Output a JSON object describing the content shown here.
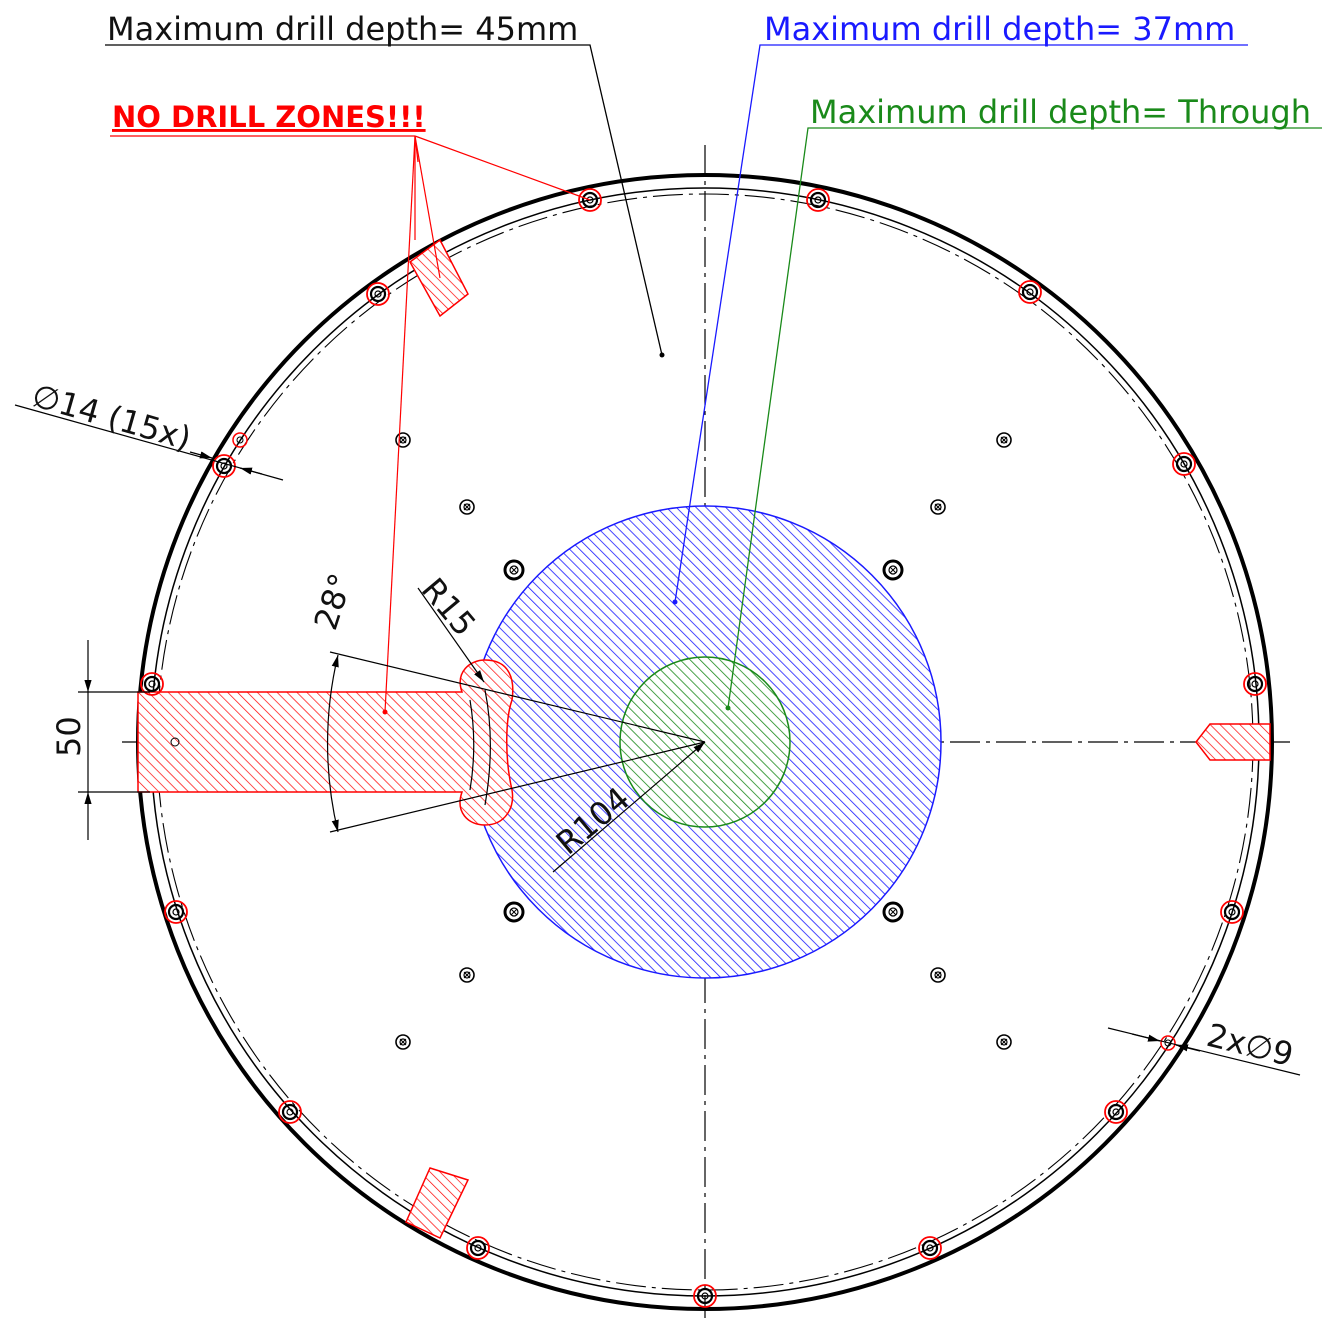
{
  "labels": {
    "depth_45": "Maximum drill depth= 45mm",
    "depth_37": "Maximum drill depth= 37mm",
    "depth_through": "Maximum drill depth= Through",
    "no_drill": "NO DRILL ZONES!!!"
  },
  "dimensions": {
    "hole_dia_14": "∅14 (15x)",
    "hole_dia_9": "2x∅9",
    "angle": "28°",
    "radius_small": "R15",
    "radius_large": "R104",
    "slot_width": "50"
  },
  "colors": {
    "outline": "#000000",
    "no_drill": "#ff0000",
    "depth_37": "#1a1aff",
    "depth_through": "#1a8a1a",
    "hatch_blue": "#1a1aff",
    "hatch_green": "#1a8a1a",
    "hatch_red": "#ff0000"
  }
}
